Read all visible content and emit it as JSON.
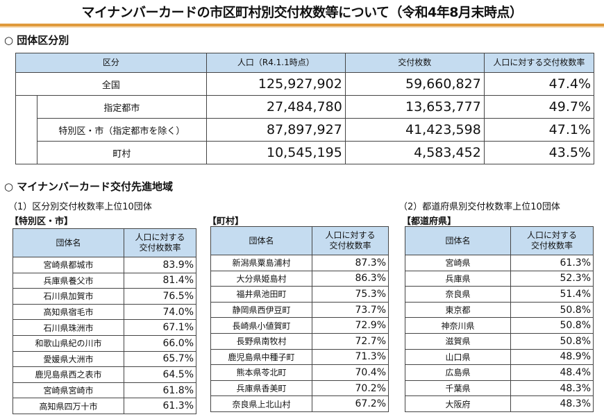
{
  "title": "マイナンバーカードの市区町村別交付枚数等について（令和4年8月末時点）",
  "section1": {
    "heading": "○ 団体区分別",
    "headers": [
      "区分",
      "人口（R4.1.1時点）",
      "交付枚数",
      "人口に対する交付枚数率"
    ],
    "rows": [
      {
        "label": "全国",
        "population": "125,927,902",
        "issued": "59,660,827",
        "rate": "47.4%"
      },
      {
        "label": "指定都市",
        "population": "27,484,780",
        "issued": "13,653,777",
        "rate": "49.7%"
      },
      {
        "label": "特別区・市（指定都市を除く）",
        "population": "87,897,927",
        "issued": "41,423,598",
        "rate": "47.1%"
      },
      {
        "label": "町村",
        "population": "10,545,195",
        "issued": "4,583,452",
        "rate": "43.5%"
      }
    ]
  },
  "section2": {
    "heading": "○ マイナンバーカード交付先進地域",
    "sub1": "（1）区分別交付枚数率上位10団体",
    "sub2": "（2）都道府県別交付枚数率上位10団体",
    "col_name": "団体名",
    "col_rate_1": "人口に対する",
    "col_rate_2": "交付枚数率",
    "tables": [
      {
        "label": "【特別区・市】",
        "rows": [
          [
            "宮崎県都城市",
            "83.9%"
          ],
          [
            "兵庫県養父市",
            "81.4%"
          ],
          [
            "石川県加賀市",
            "76.5%"
          ],
          [
            "高知県宿毛市",
            "74.0%"
          ],
          [
            "石川県珠洲市",
            "67.1%"
          ],
          [
            "和歌山県紀の川市",
            "66.0%"
          ],
          [
            "愛媛県大洲市",
            "65.7%"
          ],
          [
            "鹿児島県西之表市",
            "64.5%"
          ],
          [
            "宮崎県宮崎市",
            "61.8%"
          ],
          [
            "高知県四万十市",
            "61.3%"
          ]
        ]
      },
      {
        "label": "【町村】",
        "rows": [
          [
            "新潟県粟島浦村",
            "87.3%"
          ],
          [
            "大分県姫島村",
            "86.3%"
          ],
          [
            "福井県池田町",
            "75.3%"
          ],
          [
            "静岡県西伊豆町",
            "73.7%"
          ],
          [
            "長崎県小値賀町",
            "72.9%"
          ],
          [
            "長野県南牧村",
            "72.7%"
          ],
          [
            "鹿児島県中種子町",
            "71.3%"
          ],
          [
            "熊本県苓北町",
            "70.4%"
          ],
          [
            "兵庫県香美町",
            "70.2%"
          ],
          [
            "奈良県上北山村",
            "67.2%"
          ]
        ]
      },
      {
        "label": "【都道府県】",
        "rows": [
          [
            "宮崎県",
            "61.3%"
          ],
          [
            "兵庫県",
            "52.3%"
          ],
          [
            "奈良県",
            "51.4%"
          ],
          [
            "東京都",
            "50.8%"
          ],
          [
            "神奈川県",
            "50.8%"
          ],
          [
            "滋賀県",
            "50.8%"
          ],
          [
            "山口県",
            "48.9%"
          ],
          [
            "広島県",
            "48.4%"
          ],
          [
            "千葉県",
            "48.3%"
          ],
          [
            "大阪府",
            "48.3%"
          ]
        ]
      }
    ]
  }
}
